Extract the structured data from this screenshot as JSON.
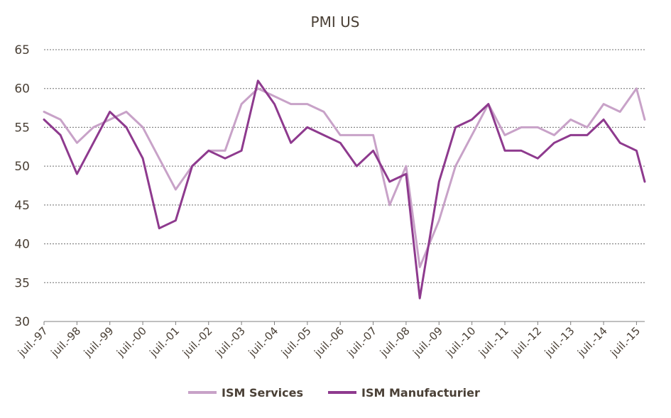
{
  "chart_data": {
    "type": "line",
    "title": "PMI US",
    "xlabel": "",
    "ylabel": "",
    "ylim": [
      30,
      65
    ],
    "yticks": [
      "30",
      "35",
      "40",
      "45",
      "50",
      "55",
      "60",
      "65"
    ],
    "grid": "horizontal dashed",
    "legend_position": "bottom",
    "x_start": "1997-07",
    "x_end": "2015-10",
    "x_tick_labels": [
      "juil.-97",
      "juil.-98",
      "juil.-99",
      "juil.-00",
      "juil.-01",
      "juil.-02",
      "juil.-03",
      "juil.-04",
      "juil.-05",
      "juil.-06",
      "juil.-07",
      "juil.-08",
      "juil.-09",
      "juil.-10",
      "juil.-11",
      "juil.-12",
      "juil.-13",
      "juil.-14",
      "juil.-15"
    ],
    "x": [
      "1997-07",
      "1998-01",
      "1998-07",
      "1999-01",
      "1999-07",
      "2000-01",
      "2000-07",
      "2001-01",
      "2001-07",
      "2002-01",
      "2002-07",
      "2003-01",
      "2003-07",
      "2004-01",
      "2004-07",
      "2005-01",
      "2005-07",
      "2006-01",
      "2006-07",
      "2007-01",
      "2007-07",
      "2008-01",
      "2008-07",
      "2008-12",
      "2009-07",
      "2010-01",
      "2010-07",
      "2011-01",
      "2011-07",
      "2012-01",
      "2012-07",
      "2013-01",
      "2013-07",
      "2014-01",
      "2014-07",
      "2015-01",
      "2015-07",
      "2015-10"
    ],
    "series": [
      {
        "name": "ISM Services",
        "color": "#c8a2c8",
        "values": [
          57,
          56,
          53,
          55,
          56,
          57,
          55,
          51,
          47,
          50,
          52,
          52,
          58,
          60,
          59,
          58,
          58,
          57,
          54,
          54,
          54,
          45,
          50,
          37,
          43,
          50,
          54,
          58,
          54,
          55,
          55,
          54,
          56,
          55,
          58,
          57,
          60,
          56
        ]
      },
      {
        "name": "ISM Manufacturier",
        "color": "#8e3a8e",
        "values": [
          56,
          54,
          49,
          53,
          57,
          55,
          51,
          42,
          43,
          50,
          52,
          51,
          52,
          61,
          58,
          53,
          55,
          54,
          53,
          50,
          52,
          48,
          49,
          33,
          48,
          55,
          56,
          58,
          52,
          52,
          51,
          53,
          54,
          54,
          56,
          53,
          52,
          48
        ]
      }
    ]
  }
}
